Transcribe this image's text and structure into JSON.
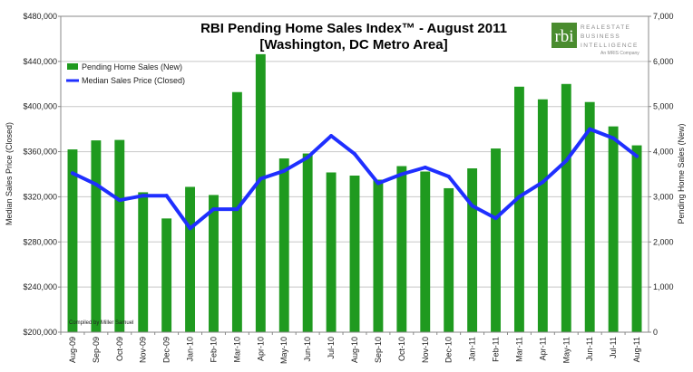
{
  "chart_data": {
    "type": "bar+line",
    "title_line1": "RBI Pending Home Sales Index™ - August 2011",
    "title_line2": "[Washington, DC Metro Area]",
    "ylabel_left": "Median Sales Price (Closed)",
    "ylabel_right": "Pending Home Sales (New)",
    "left_ticks": [
      "$200,000",
      "$240,000",
      "$280,000",
      "$320,000",
      "$360,000",
      "$400,000",
      "$440,000",
      "$480,000"
    ],
    "right_ticks": [
      "0",
      "1,000",
      "2,000",
      "3,000",
      "4,000",
      "5,000",
      "6,000",
      "7,000"
    ],
    "ylim_left": [
      200000,
      480000
    ],
    "ylim_right": [
      0,
      7000
    ],
    "categories": [
      "Aug-09",
      "Sep-09",
      "Oct-09",
      "Nov-09",
      "Dec-09",
      "Jan-10",
      "Feb-10",
      "Mar-10",
      "Apr-10",
      "May-10",
      "Jun-10",
      "Jul-10",
      "Aug-10",
      "Sep-10",
      "Oct-10",
      "Nov-10",
      "Dec-10",
      "Jan-11",
      "Feb-11",
      "Mar-11",
      "Apr-11",
      "May-11",
      "Jun-11",
      "Jul-11",
      "Aug-11"
    ],
    "series": [
      {
        "name": "Pending Home Sales (New)",
        "kind": "bar",
        "axis": "right",
        "color": "#1f9a1f",
        "values": [
          4050,
          4250,
          4260,
          3100,
          2520,
          3220,
          3040,
          5320,
          6160,
          3850,
          3960,
          3540,
          3470,
          3380,
          3680,
          3560,
          3190,
          3630,
          4070,
          5440,
          5160,
          5500,
          5100,
          4560,
          4140
        ]
      },
      {
        "name": "Median Sales Price (Closed)",
        "kind": "line",
        "axis": "left",
        "color": "#1f2fff",
        "values": [
          341000,
          331000,
          317000,
          321000,
          321000,
          292000,
          309000,
          309000,
          336000,
          343000,
          355000,
          374000,
          358000,
          332000,
          340000,
          346000,
          338000,
          312000,
          301000,
          320000,
          333000,
          352000,
          380000,
          372000,
          356000
        ]
      }
    ],
    "legend_position": "top-left",
    "grid": "horizontal",
    "note": "Compiled by Miller Samuel"
  },
  "logo": {
    "mark": "rbi",
    "line1": "REALESTATE",
    "line2": "BUSINESS",
    "line3": "INTELLIGENCE",
    "sub": "An MRIS Company",
    "color": "#4a8c2f"
  }
}
